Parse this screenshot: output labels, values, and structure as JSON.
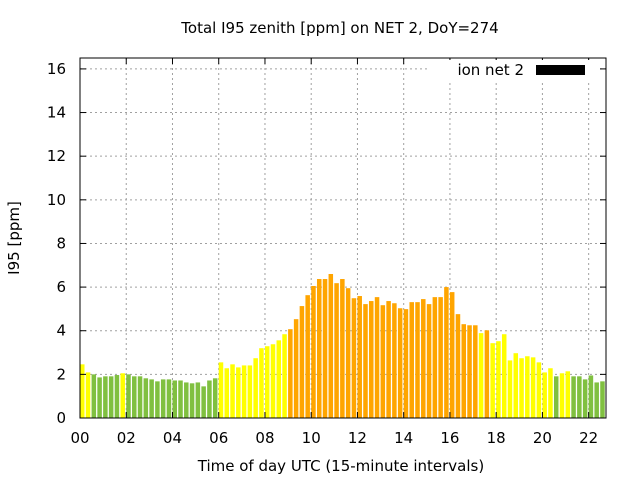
{
  "chart_data": {
    "type": "bar",
    "title": "Total I95 zenith [ppm] on NET 2, DoY=274",
    "xlabel": "Time of day UTC (15-minute intervals)",
    "ylabel": "I95 [ppm]",
    "xlim": [
      0,
      22.75
    ],
    "ylim": [
      0,
      16.5
    ],
    "grid": true,
    "legend": {
      "label": "ion net 2",
      "placement": "top-right",
      "color": "#000000"
    },
    "x_ticks": [
      0,
      2,
      4,
      6,
      8,
      10,
      12,
      14,
      16,
      18,
      20,
      22
    ],
    "x_tick_labels": [
      "00",
      "02",
      "04",
      "06",
      "08",
      "10",
      "12",
      "14",
      "16",
      "18",
      "20",
      "22"
    ],
    "y_ticks": [
      0,
      2,
      4,
      6,
      8,
      10,
      12,
      14,
      16
    ],
    "y_tick_labels": [
      "0",
      "2",
      "4",
      "6",
      "8",
      "10",
      "12",
      "14",
      "16"
    ],
    "interval_hours": 0.25,
    "colors": {
      "g": "#80c040",
      "y": "#ffff00",
      "o": "#ffa500"
    },
    "values": [
      2.46,
      2.09,
      2.0,
      1.86,
      1.91,
      1.91,
      1.97,
      2.05,
      2.0,
      1.91,
      1.91,
      1.82,
      1.77,
      1.68,
      1.77,
      1.77,
      1.72,
      1.72,
      1.63,
      1.59,
      1.63,
      1.45,
      1.72,
      1.82,
      2.55,
      2.28,
      2.46,
      2.32,
      2.41,
      2.41,
      2.74,
      3.2,
      3.29,
      3.38,
      3.56,
      3.84,
      4.07,
      4.53,
      5.13,
      5.63,
      6.05,
      6.37,
      6.37,
      6.6,
      6.18,
      6.37,
      5.95,
      5.49,
      5.59,
      5.22,
      5.36,
      5.54,
      5.17,
      5.36,
      5.26,
      5.03,
      4.99,
      5.31,
      5.31,
      5.45,
      5.22,
      5.54,
      5.54,
      6.0,
      5.77,
      4.76,
      4.3,
      4.25,
      4.25,
      3.89,
      4.02,
      3.43,
      3.52,
      3.84,
      2.64,
      2.97,
      2.74,
      2.83,
      2.78,
      2.55,
      2.09,
      2.28,
      1.91,
      2.05,
      2.14,
      1.91,
      1.91,
      1.77,
      1.95,
      1.63,
      1.68,
      1.63
    ],
    "categories": [
      "y",
      "y",
      "g",
      "g",
      "g",
      "g",
      "g",
      "y",
      "g",
      "g",
      "g",
      "g",
      "g",
      "g",
      "g",
      "g",
      "g",
      "g",
      "g",
      "g",
      "g",
      "g",
      "g",
      "g",
      "y",
      "y",
      "y",
      "y",
      "y",
      "y",
      "y",
      "y",
      "y",
      "y",
      "y",
      "y",
      "o",
      "o",
      "o",
      "o",
      "o",
      "o",
      "o",
      "o",
      "o",
      "o",
      "o",
      "o",
      "o",
      "o",
      "o",
      "o",
      "o",
      "o",
      "o",
      "o",
      "o",
      "o",
      "o",
      "o",
      "o",
      "o",
      "o",
      "o",
      "o",
      "o",
      "o",
      "o",
      "o",
      "y",
      "o",
      "y",
      "y",
      "y",
      "y",
      "y",
      "y",
      "y",
      "y",
      "y",
      "y",
      "y",
      "g",
      "y",
      "y",
      "g",
      "g",
      "g",
      "g",
      "g",
      "g",
      "g"
    ]
  }
}
